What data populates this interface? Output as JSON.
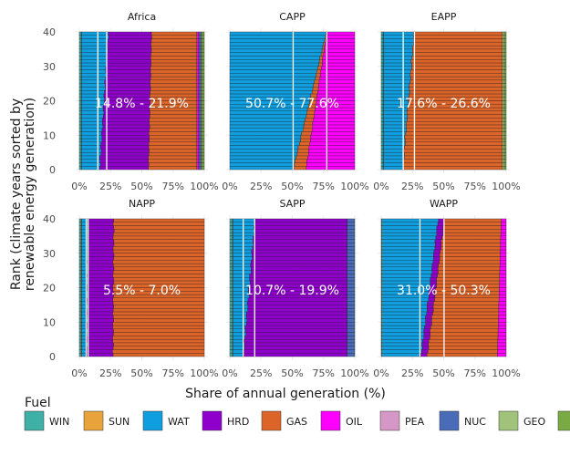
{
  "chart_data": {
    "type": "bar",
    "orientation": "horizontal-stacked",
    "xlabel": "Share of annual generation (%)",
    "ylabel": [
      "Rank (climate years sorted by",
      "renewable energy generation)"
    ],
    "xlim": [
      0,
      100
    ],
    "ylim": [
      0,
      40
    ],
    "x_ticks": [
      "0%",
      "25%",
      "50%",
      "75%",
      "100%"
    ],
    "y_ticks": [
      "0",
      "10",
      "20",
      "30",
      "40"
    ],
    "n_years": 40,
    "legend": {
      "title": "Fuel",
      "position": "bottom",
      "items": [
        {
          "key": "WIN",
          "color": "#3fb0a6"
        },
        {
          "key": "SUN",
          "color": "#e8a33a"
        },
        {
          "key": "WAT",
          "color": "#0f9ee0"
        },
        {
          "key": "HRD",
          "color": "#8f00cc"
        },
        {
          "key": "GAS",
          "color": "#dd6429"
        },
        {
          "key": "OIL",
          "color": "#ff00ff"
        },
        {
          "key": "PEA",
          "color": "#d597c5"
        },
        {
          "key": "NUC",
          "color": "#4a6bb8"
        },
        {
          "key": "GEO",
          "color": "#a1c27b"
        },
        {
          "key": "BIO",
          "color": "#7aaa43"
        }
      ]
    },
    "panels": [
      {
        "name": "Africa",
        "annotation": "14.8% - 21.9%",
        "vlines": [
          14.8,
          21.9
        ],
        "shares_rank_0": {
          "WIN": 1.5,
          "SUN": 0.3,
          "WAT": 14.5,
          "HRD": 39.0,
          "GAS": 38.7,
          "OIL": 1.5,
          "PEA": 0.5,
          "NUC": 1.5,
          "GEO": 1.0,
          "BIO": 1.5
        },
        "shares_rank_40": {
          "WIN": 1.5,
          "SUN": 0.3,
          "WAT": 21.5,
          "HRD": 34.5,
          "GAS": 36.2,
          "OIL": 1.5,
          "PEA": 0.5,
          "NUC": 1.5,
          "GEO": 1.0,
          "BIO": 1.5
        }
      },
      {
        "name": "CAPP",
        "annotation": "50.7% - 77.6%",
        "vlines": [
          50.7,
          77.6
        ],
        "shares_rank_0": {
          "WIN": 0.0,
          "SUN": 0.0,
          "WAT": 51.0,
          "HRD": 0.0,
          "GAS": 10.0,
          "OIL": 39.0,
          "PEA": 0.0,
          "NUC": 0.0,
          "GEO": 0.0,
          "BIO": 0.0
        },
        "shares_rank_40": {
          "WIN": 0.0,
          "SUN": 0.0,
          "WAT": 77.0,
          "HRD": 0.0,
          "GAS": 0.5,
          "OIL": 22.5,
          "PEA": 0.0,
          "NUC": 0.0,
          "GEO": 0.0,
          "BIO": 0.0
        }
      },
      {
        "name": "EAPP",
        "annotation": "17.6% - 26.6%",
        "vlines": [
          17.6,
          26.6
        ],
        "shares_rank_0": {
          "WIN": 1.5,
          "SUN": 0.3,
          "WAT": 15.5,
          "HRD": 0.0,
          "GAS": 79.7,
          "OIL": 0.0,
          "PEA": 0.0,
          "NUC": 0.0,
          "GEO": 1.5,
          "BIO": 1.5
        },
        "shares_rank_40": {
          "WIN": 1.5,
          "SUN": 0.3,
          "WAT": 24.5,
          "HRD": 0.0,
          "GAS": 70.7,
          "OIL": 0.0,
          "PEA": 0.0,
          "NUC": 0.0,
          "GEO": 1.5,
          "BIO": 1.5
        }
      },
      {
        "name": "NAPP",
        "annotation": "5.5% - 7.0%",
        "vlines": [
          5.5,
          7.0
        ],
        "shares_rank_0": {
          "WIN": 1.5,
          "SUN": 0.5,
          "WAT": 4.0,
          "HRD": 21.0,
          "GAS": 73.0,
          "OIL": 0.0,
          "PEA": 0.0,
          "NUC": 0.0,
          "GEO": 0.0,
          "BIO": 0.0
        },
        "shares_rank_40": {
          "WIN": 1.5,
          "SUN": 0.5,
          "WAT": 5.5,
          "HRD": 20.0,
          "GAS": 72.5,
          "OIL": 0.0,
          "PEA": 0.0,
          "NUC": 0.0,
          "GEO": 0.0,
          "BIO": 0.0
        }
      },
      {
        "name": "SAPP",
        "annotation": "10.7% - 19.9%",
        "vlines": [
          10.7,
          19.9
        ],
        "shares_rank_0": {
          "WIN": 2.0,
          "SUN": 0.5,
          "WAT": 8.5,
          "HRD": 83.0,
          "GAS": 0.0,
          "OIL": 0.0,
          "PEA": 0.0,
          "NUC": 6.0,
          "GEO": 0.0,
          "BIO": 0.0
        },
        "shares_rank_40": {
          "WIN": 2.0,
          "SUN": 0.5,
          "WAT": 17.5,
          "HRD": 74.0,
          "GAS": 0.0,
          "OIL": 0.0,
          "PEA": 0.0,
          "NUC": 6.0,
          "GEO": 0.0,
          "BIO": 0.0
        }
      },
      {
        "name": "WAPP",
        "annotation": "31.0% - 50.3%",
        "vlines": [
          31.0,
          50.3
        ],
        "shares_rank_0": {
          "WIN": 0.0,
          "SUN": 0.5,
          "WAT": 31.5,
          "HRD": 5.0,
          "GAS": 56.0,
          "OIL": 7.0,
          "PEA": 0.0,
          "NUC": 0.0,
          "GEO": 0.0,
          "BIO": 0.0
        },
        "shares_rank_40": {
          "WIN": 0.0,
          "SUN": 0.5,
          "WAT": 45.0,
          "HRD": 5.0,
          "GAS": 45.5,
          "OIL": 4.0,
          "PEA": 0.0,
          "NUC": 0.0,
          "GEO": 0.0,
          "BIO": 0.0
        }
      }
    ]
  }
}
